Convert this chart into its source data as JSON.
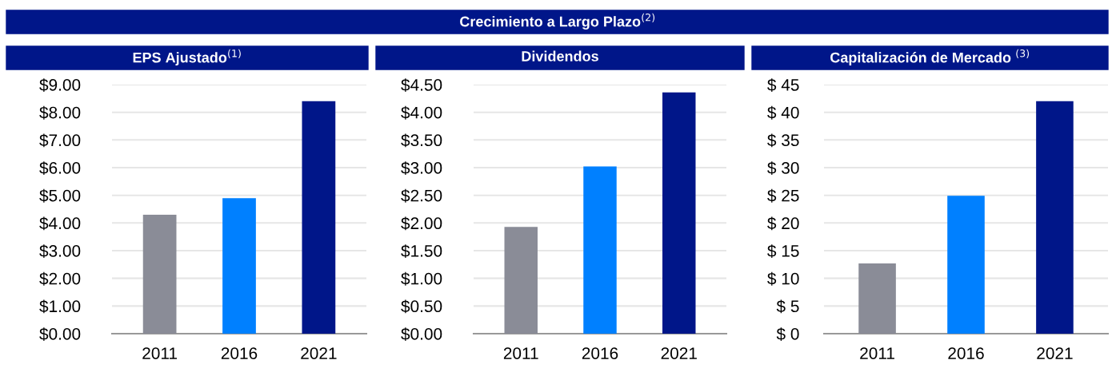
{
  "chart_data": [
    {
      "type": "bar",
      "title": "EPS Ajustado$^{(1)}$",
      "annotations": [
        "Crecimiento a Largo Plazo$^{(2)}$"
      ],
      "categories": [
        "2011",
        "2016",
        "2021"
      ],
      "values": [
        4.3,
        4.9,
        8.4
      ],
      "colors": [
        "#8a8c97",
        "#0080ff",
        "#001689"
      ],
      "ylim": [
        0,
        9
      ],
      "yticks": [
        {
          "value": 0,
          "label": "$0.00"
        },
        {
          "value": 1,
          "label": "$1.00"
        },
        {
          "value": 2,
          "label": "$2.00"
        },
        {
          "value": 3,
          "label": "$3.00"
        },
        {
          "value": 4,
          "label": "$4.00"
        },
        {
          "value": 5,
          "label": "$5.00"
        },
        {
          "value": 6,
          "label": "$6.00"
        },
        {
          "value": 7,
          "label": "$7.00"
        },
        {
          "value": 8,
          "label": "$8.00"
        },
        {
          "value": 9,
          "label": "$9.00"
        }
      ],
      "grid": "y"
    },
    {
      "type": "bar",
      "title": "Dividendos",
      "categories": [
        "2011",
        "2016",
        "2021"
      ],
      "values": [
        1.93,
        3.02,
        4.36
      ],
      "colors": [
        "#8a8c97",
        "#0080ff",
        "#001689"
      ],
      "ylim": [
        0,
        4.5
      ],
      "yticks": [
        {
          "value": 0,
          "label": "$0.00"
        },
        {
          "value": 0.5,
          "label": "$0.50"
        },
        {
          "value": 1,
          "label": "$1.00"
        },
        {
          "value": 1.5,
          "label": "$1.50"
        },
        {
          "value": 2,
          "label": "$2.00"
        },
        {
          "value": 2.5,
          "label": "$2.50"
        },
        {
          "value": 3,
          "label": "$3.00"
        },
        {
          "value": 3.5,
          "label": "$3.50"
        },
        {
          "value": 4,
          "label": "$4.00"
        },
        {
          "value": 4.5,
          "label": "$4.50"
        }
      ],
      "grid": "y"
    },
    {
      "type": "bar",
      "title": "Capitalización de Mercado $^{(3)}$",
      "categories": [
        "2011",
        "2016",
        "2021"
      ],
      "values": [
        12.7,
        24.9,
        42
      ],
      "colors": [
        "#8a8c97",
        "#0080ff",
        "#001689"
      ],
      "ylim": [
        0,
        45
      ],
      "yticks": [
        {
          "value": 0,
          "label": "$ 0"
        },
        {
          "value": 5,
          "label": "$ 5"
        },
        {
          "value": 10,
          "label": "$ 10"
        },
        {
          "value": 15,
          "label": "$ 15"
        },
        {
          "value": 20,
          "label": "$ 20"
        },
        {
          "value": 25,
          "label": "$ 25"
        },
        {
          "value": 30,
          "label": "$ 30"
        },
        {
          "value": 35,
          "label": "$ 35"
        },
        {
          "value": 40,
          "label": "$ 40"
        },
        {
          "value": 45,
          "label": "$ 45"
        }
      ],
      "grid": "y"
    }
  ]
}
